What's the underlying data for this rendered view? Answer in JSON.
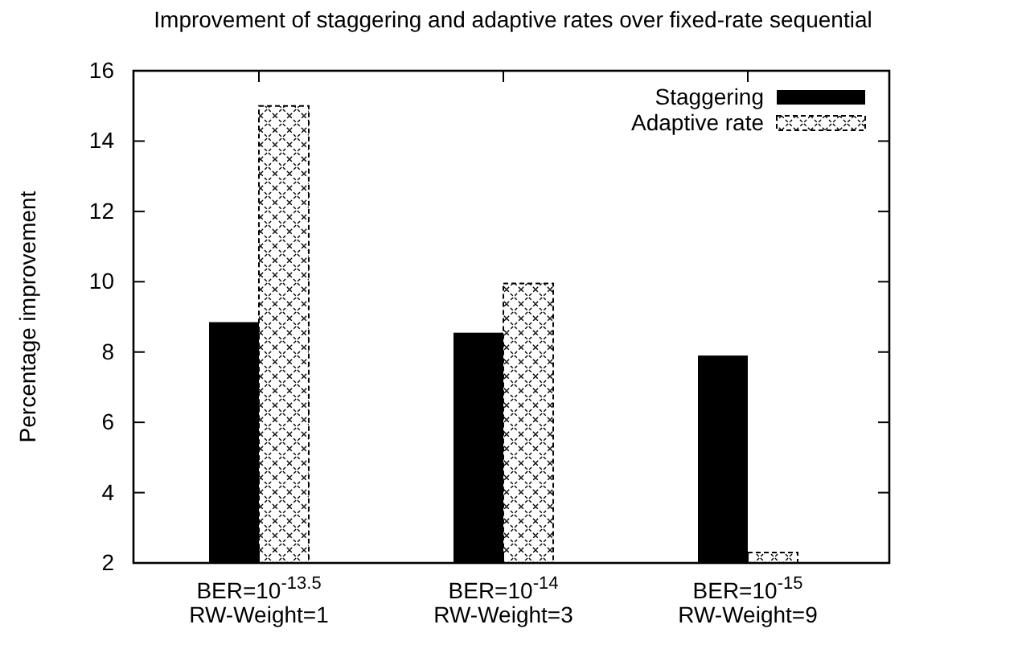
{
  "chart_data": {
    "type": "bar",
    "title": "Improvement of staggering and adaptive rates over fixed-rate sequential",
    "ylabel": "Percentage improvement",
    "categories": [
      "BER=10$^{-13.5}$\nRW-Weight=1",
      "BER=10$^{-14}$\nRW-Weight=3",
      "BER=10$^{-15}$\nRW-Weight=9"
    ],
    "series": [
      {
        "name": "Staggering",
        "color": "#000000",
        "values": [
          8.85,
          8.55,
          7.9
        ]
      },
      {
        "name": "Adaptive rate",
        "color": "#000000",
        "values": [
          15,
          9.95,
          2.3
        ]
      }
    ],
    "ylim": [
      2,
      16
    ],
    "yticks": [
      2,
      4,
      6,
      8,
      10,
      12,
      14,
      16
    ],
    "grid": false,
    "legend": "top right"
  }
}
